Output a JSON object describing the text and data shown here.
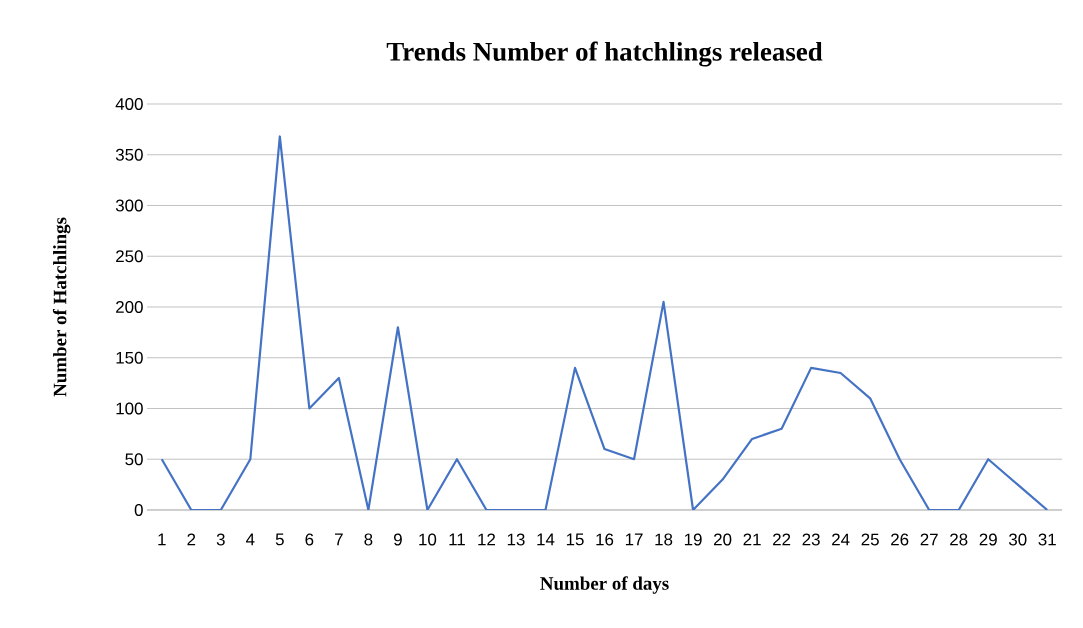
{
  "chart_data": {
    "type": "line",
    "title": "Trends Number of hatchlings released",
    "xlabel": "Number of days",
    "ylabel": "Number of Hatchlings",
    "categories": [
      "1",
      "2",
      "3",
      "4",
      "5",
      "6",
      "7",
      "8",
      "9",
      "10",
      "11",
      "12",
      "13",
      "14",
      "15",
      "16",
      "17",
      "18",
      "19",
      "20",
      "21",
      "22",
      "23",
      "24",
      "25",
      "26",
      "27",
      "28",
      "29",
      "30",
      "31"
    ],
    "series": [
      {
        "color": "#4472c4",
        "values": [
          50,
          0,
          0,
          50,
          368,
          100,
          130,
          0,
          180,
          0,
          50,
          0,
          0,
          0,
          140,
          60,
          50,
          205,
          0,
          30,
          70,
          80,
          140,
          135,
          110,
          50,
          0,
          0,
          50,
          25,
          0
        ]
      }
    ],
    "ylim": [
      0,
      400
    ],
    "yticks": [
      0,
      50,
      100,
      150,
      200,
      250,
      300,
      350,
      400
    ],
    "grid": "y",
    "marker": "none",
    "line_style": "solid"
  }
}
